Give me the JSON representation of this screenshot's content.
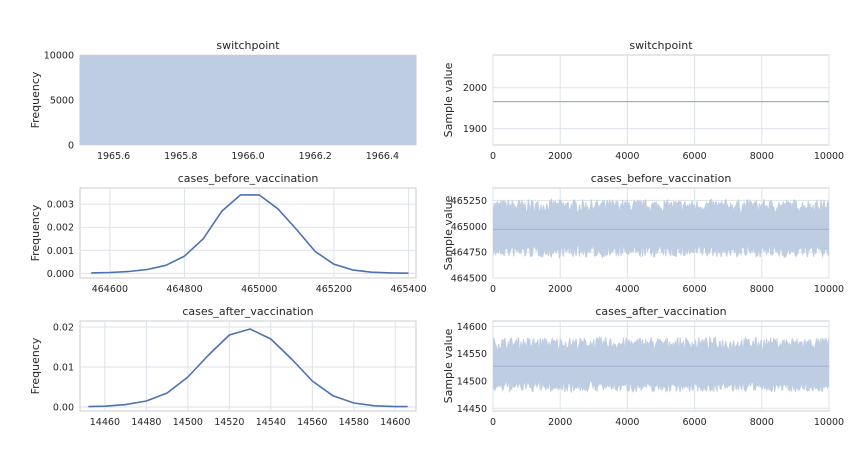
{
  "colors": {
    "axes_bg": "#ffffff",
    "grid": "#dde3ea",
    "series": "#4c72b0",
    "fill": "#bfcde2",
    "spine": "#c8ccd2"
  },
  "chart_data": [
    {
      "id": "hist_switchpoint",
      "type": "bar",
      "title": "switchpoint",
      "xlabel": "",
      "ylabel": "Frequency",
      "xlim": [
        1965.5,
        1966.5
      ],
      "ylim": [
        0,
        10000
      ],
      "xticks": [
        "1965.6",
        "1965.8",
        "1966.0",
        "1966.2",
        "1966.4"
      ],
      "yticks": [
        "0",
        "5000",
        "10000"
      ],
      "bins": [
        {
          "x0": 1965.5,
          "x1": 1966.5,
          "value": 10000
        }
      ]
    },
    {
      "id": "trace_switchpoint",
      "type": "line",
      "title": "switchpoint",
      "xlabel": "",
      "ylabel": "Sample value",
      "xlim": [
        0,
        10000
      ],
      "ylim": [
        1860,
        2080
      ],
      "xticks": [
        "0",
        "2000",
        "4000",
        "6000",
        "8000",
        "10000"
      ],
      "yticks": [
        "1900",
        "2000"
      ],
      "x": [
        0,
        10000
      ],
      "y": [
        1966,
        1966
      ]
    },
    {
      "id": "kde_before",
      "type": "line",
      "title": "cases_before_vaccination",
      "xlabel": "",
      "ylabel": "Frequency",
      "xlim": [
        464520,
        465420
      ],
      "ylim": [
        -0.0002,
        0.0037
      ],
      "xticks": [
        "464600",
        "464800",
        "465000",
        "465200",
        "465400"
      ],
      "yticks": [
        "0.000",
        "0.001",
        "0.002",
        "0.003"
      ],
      "x": [
        464550,
        464600,
        464650,
        464700,
        464750,
        464800,
        464850,
        464900,
        464950,
        465000,
        465050,
        465100,
        465150,
        465200,
        465250,
        465300,
        465350,
        465400
      ],
      "y": [
        2e-05,
        4e-05,
        8e-05,
        0.00017,
        0.00035,
        0.00075,
        0.0015,
        0.0027,
        0.0034,
        0.0034,
        0.0028,
        0.0019,
        0.00095,
        0.0004,
        0.00015,
        5e-05,
        2e-05,
        1e-05
      ]
    },
    {
      "id": "trace_before",
      "type": "line",
      "title": "cases_before_vaccination",
      "xlabel": "",
      "ylabel": "Sample value",
      "xlim": [
        0,
        10000
      ],
      "ylim": [
        464500,
        465370
      ],
      "xticks": [
        "0",
        "2000",
        "4000",
        "6000",
        "8000",
        "10000"
      ],
      "yticks": [
        "464500",
        "464750",
        "465000",
        "465250"
      ],
      "band": {
        "x": [
          0,
          10000
        ],
        "low": 464700,
        "high": 465260,
        "center": 464970
      }
    },
    {
      "id": "kde_after",
      "type": "line",
      "title": "cases_after_vaccination",
      "xlabel": "",
      "ylabel": "Frequency",
      "xlim": [
        14448,
        14610
      ],
      "ylim": [
        -0.001,
        0.0215
      ],
      "xticks": [
        "14460",
        "14480",
        "14500",
        "14520",
        "14540",
        "14560",
        "14580",
        "14600"
      ],
      "yticks": [
        "0.00",
        "0.01",
        "0.02"
      ],
      "x": [
        14452,
        14460,
        14470,
        14480,
        14490,
        14500,
        14510,
        14520,
        14530,
        14540,
        14550,
        14560,
        14570,
        14580,
        14590,
        14600,
        14606
      ],
      "y": [
        0.0001,
        0.0002,
        0.0006,
        0.0015,
        0.0035,
        0.0075,
        0.013,
        0.018,
        0.0195,
        0.017,
        0.012,
        0.0065,
        0.0028,
        0.001,
        0.0003,
        0.0001,
        0.0001
      ]
    },
    {
      "id": "trace_after",
      "type": "line",
      "title": "cases_after_vaccination",
      "xlabel": "",
      "ylabel": "Sample value",
      "xlim": [
        0,
        10000
      ],
      "ylim": [
        14445,
        14610
      ],
      "xticks": [
        "0",
        "2000",
        "4000",
        "6000",
        "8000",
        "10000"
      ],
      "yticks": [
        "14450",
        "14500",
        "14550",
        "14600"
      ],
      "band": {
        "x": [
          0,
          10000
        ],
        "low": 14480,
        "high": 14580,
        "center": 14527
      }
    }
  ]
}
